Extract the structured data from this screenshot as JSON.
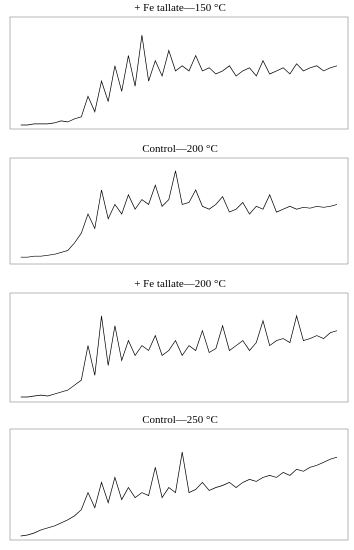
{
  "chart_data": [
    {
      "type": "line",
      "title": "+ Fe tallate—150 °C",
      "xlim": [
        0,
        37
      ],
      "ylim": [
        0,
        100
      ],
      "x": [
        0.75,
        1.5,
        2.25,
        3,
        3.75,
        4.5,
        5.25,
        6,
        6.75,
        7.5,
        8.25,
        9,
        9.75,
        10.5,
        11.25,
        12,
        12.75,
        13.5,
        14.25,
        15,
        15.75,
        16.5,
        17.25,
        18,
        18.75,
        19.5,
        20.25,
        21,
        21.75,
        22.5,
        23.25,
        24,
        24.75,
        25.5,
        26.25,
        27,
        27.75,
        28.5,
        29.25,
        30,
        30.75,
        31.5,
        32.25,
        33,
        33.75,
        34.5,
        35.25,
        36
      ],
      "series": [
        {
          "color": "#000000",
          "values": [
            2,
            2,
            3,
            3,
            3,
            4,
            6,
            5,
            8,
            10,
            30,
            15,
            45,
            25,
            60,
            35,
            70,
            40,
            90,
            45,
            65,
            50,
            75,
            55,
            60,
            55,
            70,
            55,
            58,
            52,
            55,
            60,
            50,
            55,
            58,
            50,
            65,
            52,
            55,
            58,
            52,
            62,
            55,
            58,
            60,
            55,
            58,
            60
          ]
        }
      ]
    },
    {
      "type": "line",
      "title": "Control—200 °C",
      "xlim": [
        0,
        37
      ],
      "ylim": [
        0,
        100
      ],
      "x": [
        0.75,
        1.5,
        2.25,
        3,
        3.75,
        4.5,
        5.25,
        6,
        6.75,
        7.5,
        8.25,
        9,
        9.75,
        10.5,
        11.25,
        12,
        12.75,
        13.5,
        14.25,
        15,
        15.75,
        16.5,
        17.25,
        18,
        18.75,
        19.5,
        20.25,
        21,
        21.75,
        22.5,
        23.25,
        24,
        24.75,
        25.5,
        26.25,
        27,
        27.75,
        28.5,
        29.25,
        30,
        30.75,
        31.5,
        32.25,
        33,
        33.75,
        34.5,
        35.25,
        36
      ],
      "series": [
        {
          "color": "#000000",
          "values": [
            5,
            5,
            6,
            6,
            7,
            8,
            10,
            12,
            20,
            30,
            50,
            35,
            75,
            45,
            60,
            50,
            70,
            55,
            65,
            60,
            80,
            58,
            65,
            95,
            60,
            62,
            75,
            58,
            55,
            60,
            68,
            52,
            55,
            62,
            50,
            58,
            55,
            70,
            52,
            55,
            58,
            55,
            57,
            56,
            58,
            57,
            58,
            60
          ]
        }
      ]
    },
    {
      "type": "line",
      "title": "+ Fe tallate—200 °C",
      "xlim": [
        0,
        37
      ],
      "ylim": [
        0,
        100
      ],
      "x": [
        0.75,
        1.5,
        2.25,
        3,
        3.75,
        4.5,
        5.25,
        6,
        6.75,
        7.5,
        8.25,
        9,
        9.75,
        10.5,
        11.25,
        12,
        12.75,
        13.5,
        14.25,
        15,
        15.75,
        16.5,
        17.25,
        18,
        18.75,
        19.5,
        20.25,
        21,
        21.75,
        22.5,
        23.25,
        24,
        24.75,
        25.5,
        26.25,
        27,
        27.75,
        28.5,
        29.25,
        30,
        30.75,
        31.5,
        32.25,
        33,
        33.75,
        34.5,
        35.25,
        36
      ],
      "series": [
        {
          "color": "#000000",
          "values": [
            3,
            3,
            4,
            5,
            4,
            6,
            8,
            10,
            15,
            20,
            55,
            25,
            85,
            35,
            75,
            40,
            60,
            45,
            55,
            50,
            65,
            45,
            50,
            60,
            45,
            55,
            50,
            70,
            48,
            52,
            75,
            50,
            55,
            60,
            50,
            58,
            80,
            55,
            60,
            62,
            58,
            85,
            60,
            62,
            65,
            62,
            68,
            70
          ]
        }
      ]
    },
    {
      "type": "line",
      "title": "Control—250 °C",
      "xlim": [
        0,
        37
      ],
      "ylim": [
        0,
        100
      ],
      "x": [
        0.75,
        1.5,
        2.25,
        3,
        3.75,
        4.5,
        5.25,
        6,
        6.75,
        7.5,
        8.25,
        9,
        9.75,
        10.5,
        11.25,
        12,
        12.75,
        13.5,
        14.25,
        15,
        15.75,
        16.5,
        17.25,
        18,
        18.75,
        19.5,
        20.25,
        21,
        21.75,
        22.5,
        23.25,
        24,
        24.75,
        25.5,
        26.25,
        27,
        27.75,
        28.5,
        29.25,
        30,
        30.75,
        31.5,
        32.25,
        33,
        33.75,
        34.5,
        35.25,
        36
      ],
      "series": [
        {
          "color": "#000000",
          "values": [
            2,
            3,
            5,
            8,
            10,
            12,
            15,
            18,
            22,
            28,
            45,
            30,
            55,
            35,
            60,
            38,
            50,
            40,
            45,
            42,
            70,
            40,
            50,
            45,
            85,
            45,
            48,
            55,
            47,
            50,
            52,
            55,
            50,
            55,
            58,
            56,
            60,
            62,
            60,
            65,
            62,
            68,
            66,
            70,
            72,
            75,
            78,
            80
          ]
        }
      ]
    }
  ]
}
